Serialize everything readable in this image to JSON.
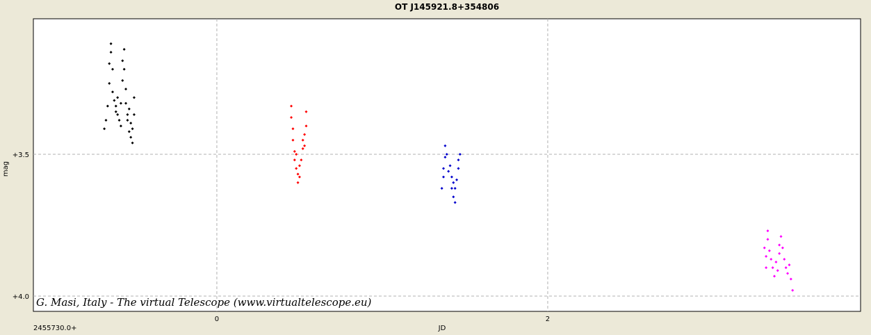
{
  "chart_data": {
    "type": "scatter",
    "title": "OT J145921.8+354806",
    "xlabel": "JD",
    "ylabel": "mag",
    "x_offset_label": "2455730.0+",
    "annotation": "G. Masi, Italy - The virtual Telescope (www.virtualtelescope.eu)",
    "xlim": [
      -1.109,
      3.891
    ],
    "xticks": [
      0,
      2
    ],
    "ylim": [
      4.054,
      3.022
    ],
    "yticks": [
      {
        "value": 3.5,
        "label": "+3.5"
      },
      {
        "value": 4.0,
        "label": "+4.0"
      }
    ],
    "y_inverted": true,
    "grid": true,
    "series": [
      {
        "color": "#000000",
        "x": [
          -0.68,
          -0.67,
          -0.66,
          -0.65,
          -0.65,
          -0.64,
          -0.64,
          -0.63,
          -0.63,
          -0.62,
          -0.61,
          -0.61,
          -0.6,
          -0.6,
          -0.59,
          -0.58,
          -0.58,
          -0.57,
          -0.57,
          -0.56,
          -0.56,
          -0.55,
          -0.55,
          -0.54,
          -0.54,
          -0.53,
          -0.53,
          -0.52,
          -0.52,
          -0.51,
          -0.51,
          -0.5,
          -0.5
        ],
        "values": [
          3.41,
          3.38,
          3.33,
          3.25,
          3.18,
          3.14,
          3.11,
          3.2,
          3.28,
          3.31,
          3.33,
          3.35,
          3.36,
          3.3,
          3.38,
          3.4,
          3.32,
          3.24,
          3.17,
          3.13,
          3.2,
          3.27,
          3.32,
          3.36,
          3.38,
          3.42,
          3.34,
          3.39,
          3.44,
          3.46,
          3.41,
          3.3,
          3.36
        ]
      },
      {
        "color": "#ff0000",
        "x": [
          0.45,
          0.45,
          0.46,
          0.46,
          0.47,
          0.47,
          0.48,
          0.48,
          0.49,
          0.49,
          0.5,
          0.5,
          0.51,
          0.52,
          0.52,
          0.53,
          0.53,
          0.54,
          0.54
        ],
        "values": [
          3.33,
          3.37,
          3.41,
          3.45,
          3.49,
          3.52,
          3.5,
          3.55,
          3.57,
          3.6,
          3.58,
          3.54,
          3.52,
          3.48,
          3.45,
          3.43,
          3.47,
          3.4,
          3.35
        ]
      },
      {
        "color": "#0000cc",
        "x": [
          1.36,
          1.37,
          1.37,
          1.38,
          1.38,
          1.39,
          1.4,
          1.41,
          1.42,
          1.42,
          1.43,
          1.43,
          1.44,
          1.44,
          1.45,
          1.46,
          1.46,
          1.47
        ],
        "values": [
          3.62,
          3.58,
          3.55,
          3.51,
          3.47,
          3.5,
          3.56,
          3.54,
          3.58,
          3.62,
          3.6,
          3.65,
          3.67,
          3.62,
          3.59,
          3.55,
          3.52,
          3.5
        ]
      },
      {
        "color": "#ff00ff",
        "x": [
          3.31,
          3.32,
          3.32,
          3.33,
          3.33,
          3.34,
          3.35,
          3.36,
          3.37,
          3.38,
          3.39,
          3.4,
          3.4,
          3.41,
          3.42,
          3.43,
          3.44,
          3.45,
          3.46,
          3.47,
          3.48
        ],
        "values": [
          3.83,
          3.86,
          3.9,
          3.8,
          3.77,
          3.84,
          3.87,
          3.9,
          3.93,
          3.88,
          3.91,
          3.85,
          3.82,
          3.79,
          3.83,
          3.87,
          3.9,
          3.92,
          3.89,
          3.94,
          3.98
        ]
      }
    ]
  }
}
